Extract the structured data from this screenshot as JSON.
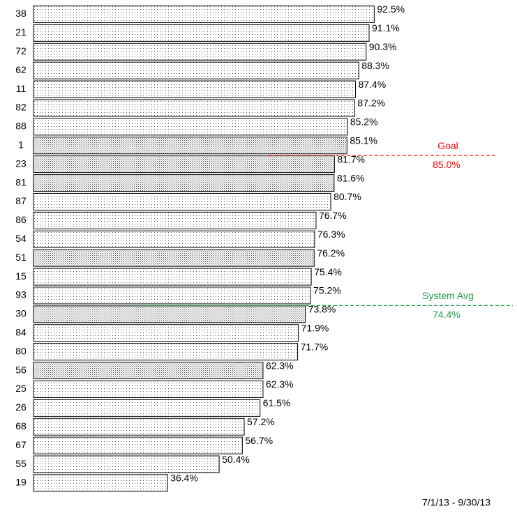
{
  "chart_data": {
    "type": "barh",
    "categories": [
      "38",
      "21",
      "72",
      "62",
      "11",
      "82",
      "88",
      "1",
      "23",
      "81",
      "87",
      "86",
      "54",
      "51",
      "15",
      "93",
      "30",
      "84",
      "80",
      "56",
      "25",
      "26",
      "68",
      "67",
      "55",
      "19"
    ],
    "values": [
      92.5,
      91.1,
      90.3,
      88.3,
      87.4,
      87.2,
      85.2,
      85.1,
      81.7,
      81.6,
      80.7,
      76.7,
      76.3,
      76.2,
      75.4,
      75.2,
      73.8,
      71.9,
      71.7,
      62.3,
      62.3,
      61.5,
      57.2,
      56.7,
      50.4,
      36.4
    ],
    "value_labels": [
      "92.5%",
      "91.1%",
      "90.3%",
      "88.3%",
      "87.4%",
      "87.2%",
      "85.2%",
      "85.1%",
      "81.7%",
      "81.6%",
      "80.7%",
      "76.7%",
      "76.3%",
      "76.2%",
      "75.4%",
      "75.2%",
      "73.8%",
      "71.9%",
      "71.7%",
      "62.3%",
      "62.3%",
      "61.5%",
      "57.2%",
      "56.7%",
      "50.4%",
      "36.4%"
    ],
    "bar_styles": [
      "sparse",
      "sparse",
      "sparse",
      "sparse",
      "sparse",
      "sparse",
      "sparse",
      "dense",
      "dense",
      "dense",
      "sparse",
      "sparse",
      "sparse",
      "dense",
      "sparse",
      "sparse",
      "dense",
      "sparse",
      "sparse",
      "dense",
      "sparse",
      "sparse",
      "sparse",
      "sparse",
      "sparse",
      "sparse"
    ],
    "xlim": [
      0,
      100
    ],
    "reference_lines": [
      {
        "label": "Goal",
        "value": 85,
        "value_label": "85.0%",
        "color": "#ff0000"
      },
      {
        "label": "System Avg",
        "value": 74.4,
        "value_label": "74.4%",
        "color": "#1e9a48"
      }
    ],
    "footnote": "7/1/13 - 9/30/13"
  }
}
